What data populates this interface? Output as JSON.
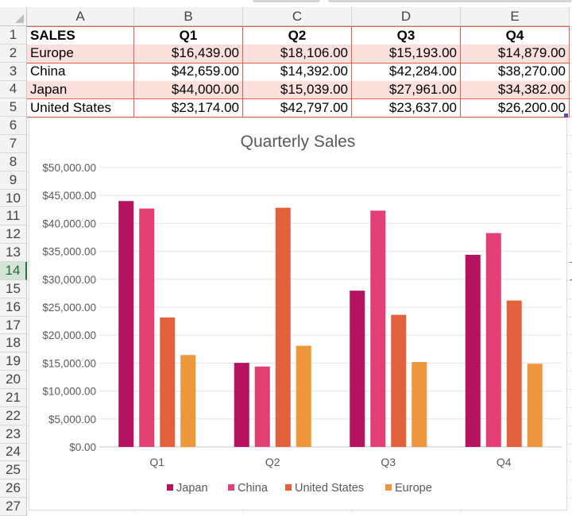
{
  "spreadsheet": {
    "columns": [
      "A",
      "B",
      "C",
      "D",
      "E"
    ],
    "rows": [
      "1",
      "2",
      "3",
      "4",
      "5",
      "6",
      "7",
      "8",
      "9",
      "10",
      "11",
      "12",
      "13",
      "14",
      "15",
      "16",
      "17",
      "18",
      "19",
      "20",
      "21",
      "22",
      "23",
      "24",
      "25",
      "26",
      "27"
    ],
    "selected_row": "14",
    "table": {
      "header": [
        "SALES",
        "Q1",
        "Q2",
        "Q3",
        "Q4"
      ],
      "data": [
        [
          "Europe",
          "$16,439.00",
          "$18,106.00",
          "$15,193.00",
          "$14,879.00"
        ],
        [
          "China",
          "$42,659.00",
          "$14,392.00",
          "$42,284.00",
          "$38,270.00"
        ],
        [
          "Japan",
          "$44,000.00",
          "$15,039.00",
          "$27,961.00",
          "$34,382.00"
        ],
        [
          "United States",
          "$23,174.00",
          "$42,797.00",
          "$23,637.00",
          "$26,200.00"
        ]
      ]
    },
    "colors": {
      "band_fill": "#fbe0dc",
      "border": "#e0604a",
      "header_fill": "#f3f3f3",
      "grid": "#e1e1e1"
    }
  },
  "chart_data": {
    "type": "bar",
    "title": "Quarterly Sales",
    "categories": [
      "Q1",
      "Q2",
      "Q3",
      "Q4"
    ],
    "series": [
      {
        "name": "Japan",
        "color": "#b5125f",
        "values": [
          44000,
          15039,
          27961,
          34382
        ]
      },
      {
        "name": "China",
        "color": "#e23f74",
        "values": [
          42659,
          14392,
          42284,
          38270
        ]
      },
      {
        "name": "United States",
        "color": "#e3603d",
        "values": [
          23174,
          42797,
          23637,
          26200
        ]
      },
      {
        "name": "Europe",
        "color": "#ed963c",
        "values": [
          16439,
          18106,
          15193,
          14879
        ]
      }
    ],
    "y_ticks": [
      "$0.00",
      "$5,000.00",
      "$10,000.00",
      "$15,000.00",
      "$20,000.00",
      "$25,000.00",
      "$30,000.00",
      "$35,000.00",
      "$40,000.00",
      "$45,000.00",
      "$50,000.00"
    ],
    "ylim": [
      0,
      50000
    ],
    "xlabel": "",
    "ylabel": "",
    "legend_position": "bottom",
    "grid": true
  }
}
